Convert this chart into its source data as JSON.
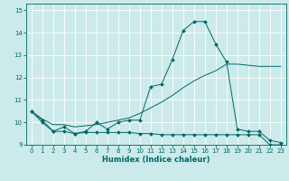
{
  "xlabel": "Humidex (Indice chaleur)",
  "bg_color": "#cceaea",
  "grid_color": "#ffffff",
  "line_color": "#006868",
  "xlim": [
    -0.5,
    23.5
  ],
  "ylim": [
    9.0,
    15.3
  ],
  "yticks": [
    9,
    10,
    11,
    12,
    13,
    14,
    15
  ],
  "xticks": [
    0,
    1,
    2,
    3,
    4,
    5,
    6,
    7,
    8,
    9,
    10,
    11,
    12,
    13,
    14,
    15,
    16,
    17,
    18,
    19,
    20,
    21,
    22,
    23
  ],
  "x": [
    0,
    1,
    2,
    3,
    4,
    5,
    6,
    7,
    8,
    9,
    10,
    11,
    12,
    13,
    14,
    15,
    16,
    17,
    18,
    19,
    20,
    21,
    22,
    23
  ],
  "line_jagged_y": [
    10.5,
    10.1,
    9.6,
    9.8,
    9.5,
    9.6,
    10.0,
    9.7,
    10.0,
    10.1,
    10.1,
    11.6,
    11.7,
    12.8,
    14.1,
    14.5,
    14.5,
    13.5,
    12.7,
    9.7,
    9.6,
    9.6,
    9.2,
    9.1
  ],
  "line_trend_y": [
    10.5,
    10.15,
    9.9,
    9.9,
    9.8,
    9.85,
    9.9,
    10.0,
    10.1,
    10.2,
    10.4,
    10.65,
    10.9,
    11.2,
    11.55,
    11.85,
    12.1,
    12.3,
    12.6,
    12.6,
    12.55,
    12.5,
    12.5,
    12.5
  ],
  "line_flat_y": [
    10.5,
    10.0,
    9.6,
    9.6,
    9.5,
    9.55,
    9.55,
    9.55,
    9.55,
    9.55,
    9.5,
    9.5,
    9.45,
    9.45,
    9.45,
    9.45,
    9.45,
    9.45,
    9.45,
    9.45,
    9.45,
    9.45,
    9.0,
    9.0
  ]
}
